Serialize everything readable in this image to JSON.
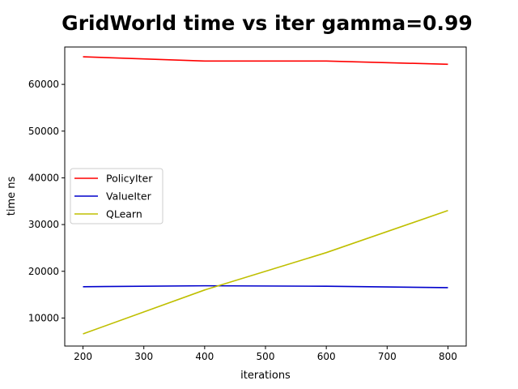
{
  "chart_data": {
    "type": "line",
    "title": "GridWorld time vs iter  gamma=0.99",
    "xlabel": "iterations",
    "ylabel": "time ns",
    "x": [
      200,
      400,
      600,
      800
    ],
    "xlim": [
      170,
      830
    ],
    "ylim": [
      4000,
      68000
    ],
    "xticks": [
      200,
      300,
      400,
      500,
      600,
      700,
      800
    ],
    "yticks": [
      10000,
      20000,
      30000,
      40000,
      50000,
      60000
    ],
    "grid": false,
    "legend_position": "center-left",
    "series": [
      {
        "name": "PolicyIter",
        "color": "#ff0000",
        "values": [
          65900,
          65000,
          65000,
          64300
        ]
      },
      {
        "name": "ValueIter",
        "color": "#0000cc",
        "values": [
          16700,
          16900,
          16800,
          16500
        ]
      },
      {
        "name": "QLearn",
        "color": "#bfbf00",
        "values": [
          6600,
          16000,
          24000,
          33000
        ]
      }
    ]
  }
}
